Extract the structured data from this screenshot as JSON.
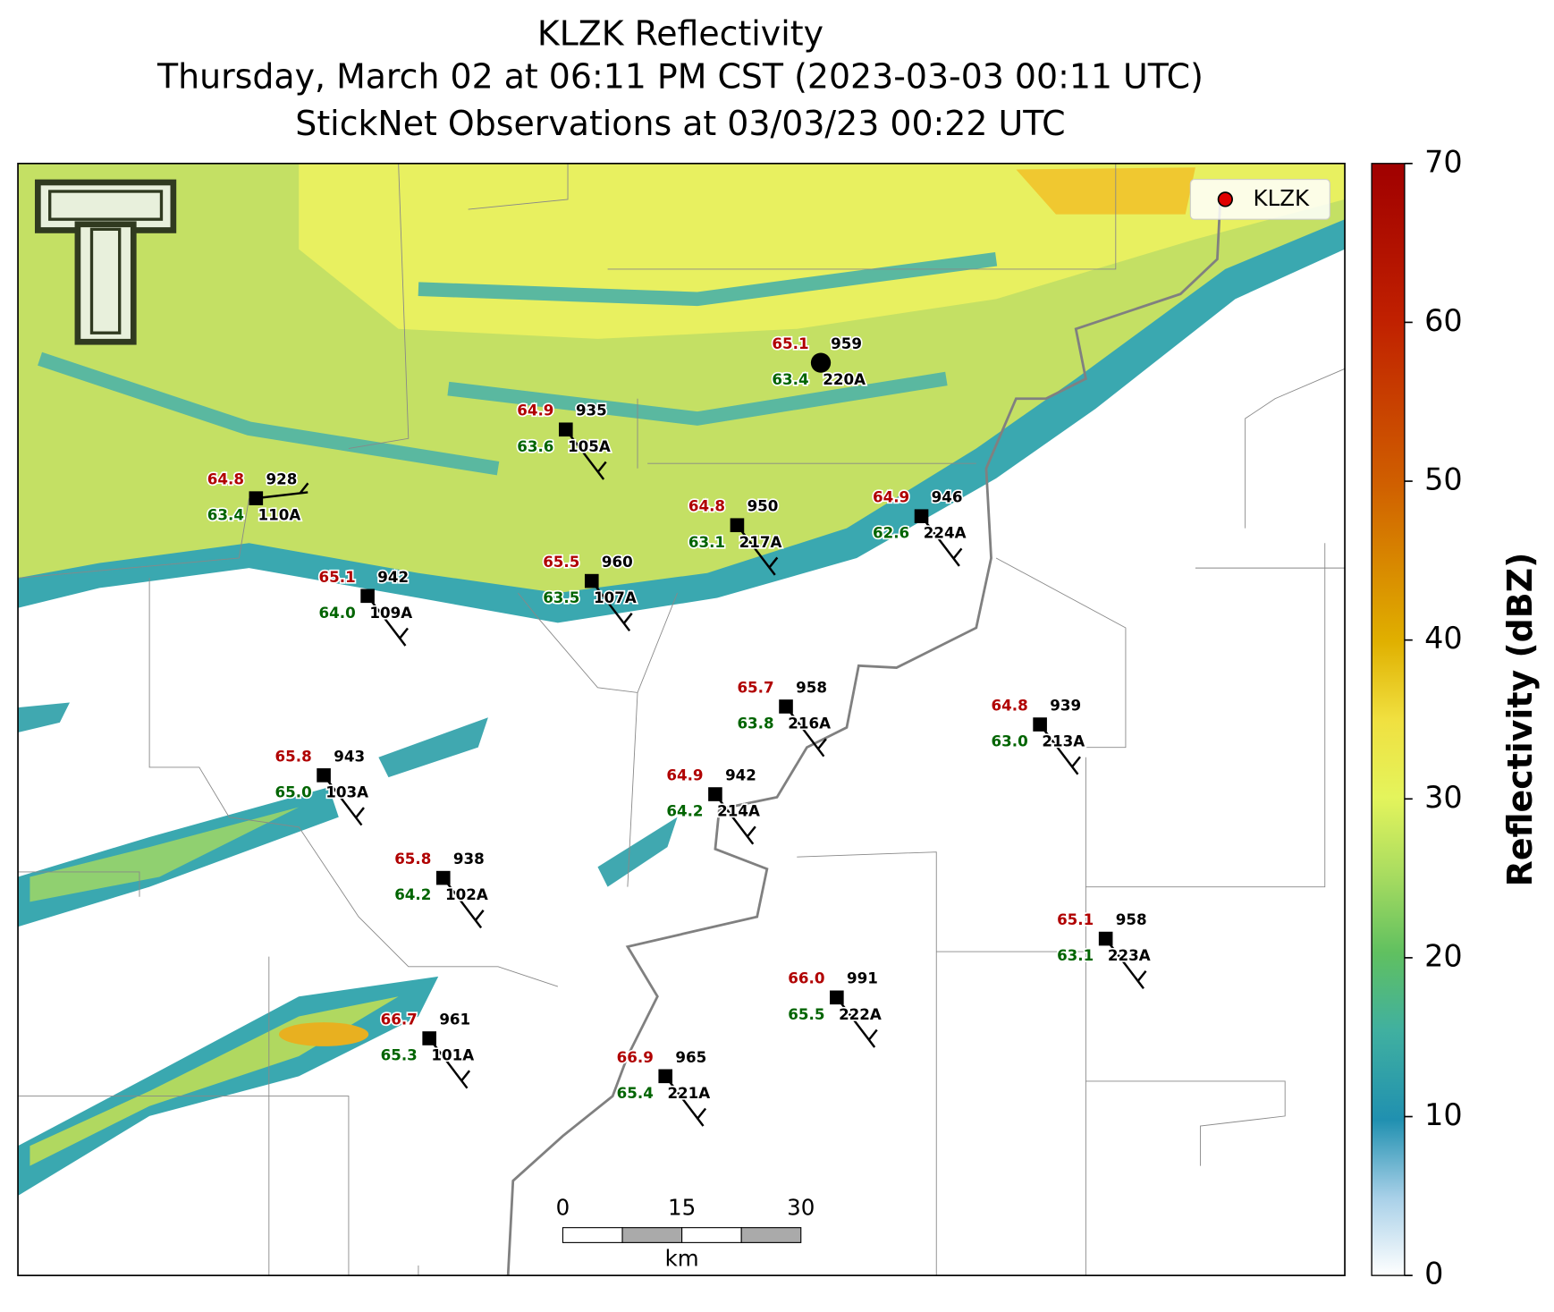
{
  "title_lines": [
    "KLZK Reflectivity",
    "Thursday, March 02 at 06:11 PM CST (2023-03-03 00:11 UTC)",
    "StickNet Observations at 03/03/23 00:22 UTC"
  ],
  "legend": {
    "label": "KLZK",
    "color": "#e00000",
    "corner": "upper right"
  },
  "colorbar": {
    "label": "Reflectivity (dBZ)",
    "lim": [
      0,
      70
    ],
    "ticks": [
      0,
      10,
      20,
      30,
      40,
      50,
      60,
      70
    ]
  },
  "scale_bar": {
    "lim": [
      0,
      30
    ],
    "ticks": [
      0,
      15,
      30
    ],
    "unit": "km"
  },
  "stations": [
    {
      "id": "220A",
      "temp": "65.1",
      "dew": "63.4",
      "pres": "959"
    },
    {
      "id": "105A",
      "temp": "64.9",
      "dew": "63.6",
      "pres": "935"
    },
    {
      "id": "110A",
      "temp": "64.8",
      "dew": "63.4",
      "pres": "928"
    },
    {
      "id": "217A",
      "temp": "64.8",
      "dew": "63.1",
      "pres": "950"
    },
    {
      "id": "224A",
      "temp": "64.9",
      "dew": "62.6",
      "pres": "946"
    },
    {
      "id": "107A",
      "temp": "65.5",
      "dew": "63.5",
      "pres": "960"
    },
    {
      "id": "109A",
      "temp": "65.1",
      "dew": "64.0",
      "pres": "942"
    },
    {
      "id": "216A",
      "temp": "65.7",
      "dew": "63.8",
      "pres": "958"
    },
    {
      "id": "213A",
      "temp": "64.8",
      "dew": "63.0",
      "pres": "939"
    },
    {
      "id": "103A",
      "temp": "65.8",
      "dew": "65.0",
      "pres": "943"
    },
    {
      "id": "214A",
      "temp": "64.9",
      "dew": "64.2",
      "pres": "942"
    },
    {
      "id": "102A",
      "temp": "65.8",
      "dew": "64.2",
      "pres": "938"
    },
    {
      "id": "223A",
      "temp": "65.1",
      "dew": "63.1",
      "pres": "958"
    },
    {
      "id": "222A",
      "temp": "66.0",
      "dew": "65.5",
      "pres": "991"
    },
    {
      "id": "101A",
      "temp": "66.7",
      "dew": "65.3",
      "pres": "961"
    },
    {
      "id": "221A",
      "temp": "66.9",
      "dew": "65.4",
      "pres": "965"
    }
  ]
}
